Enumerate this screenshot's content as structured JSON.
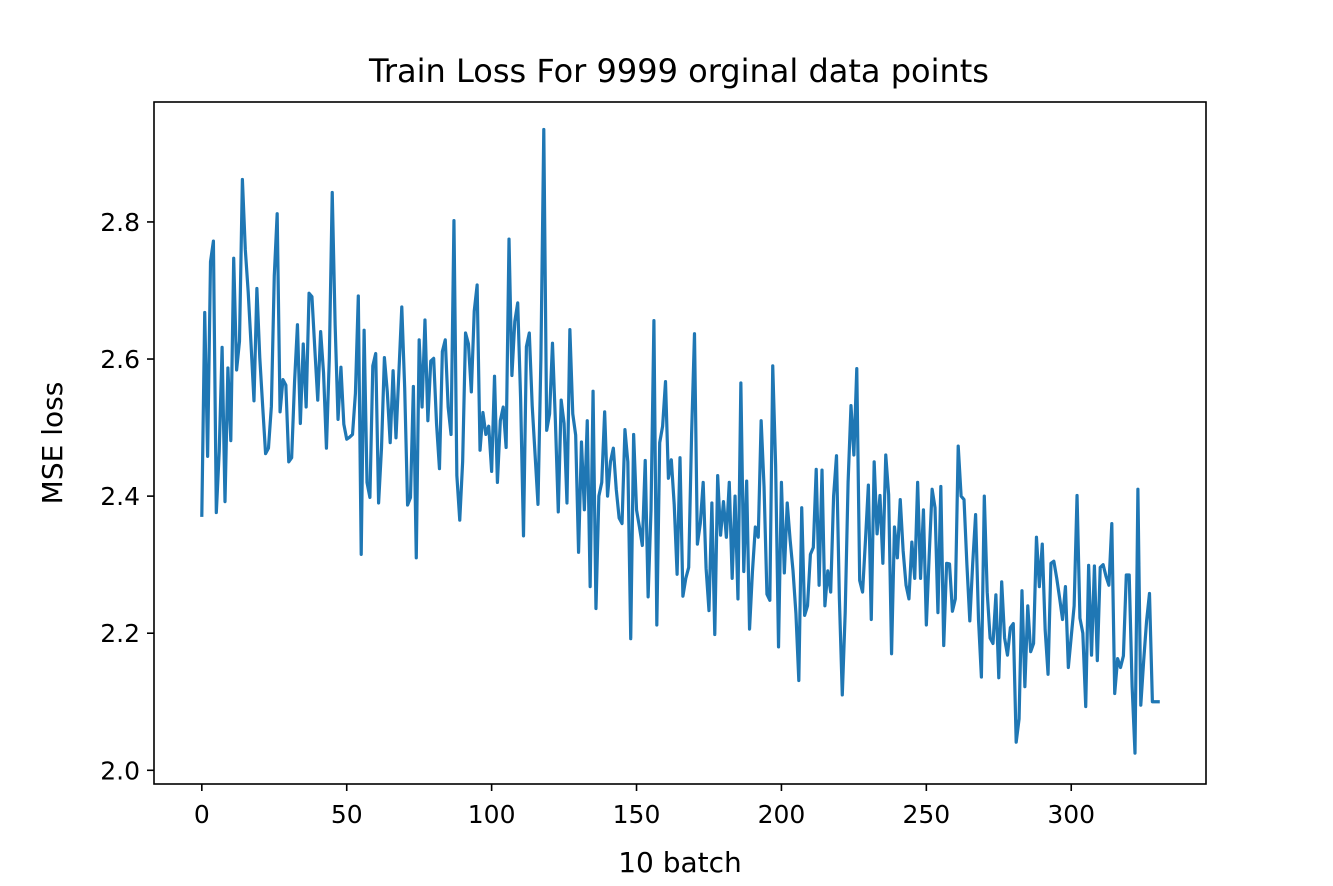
{
  "chart_data": {
    "type": "line",
    "title": "Train Loss For 9999 orginal data points",
    "xlabel": "10 batch",
    "ylabel": "MSE loss",
    "xlim": [
      -16.5,
      346.5
    ],
    "ylim": [
      1.98,
      2.975
    ],
    "xticks": [
      0,
      50,
      100,
      150,
      200,
      250,
      300
    ],
    "xtick_labels": [
      "0",
      "50",
      "100",
      "150",
      "200",
      "250",
      "300"
    ],
    "yticks": [
      2.0,
      2.2,
      2.4,
      2.6,
      2.8
    ],
    "ytick_labels": [
      "2.0",
      "2.2",
      "2.4",
      "2.6",
      "2.8"
    ],
    "grid": false,
    "series_color": "#1f77b4",
    "series": [
      {
        "values": [
          2.372,
          2.668,
          2.458,
          2.742,
          2.772,
          2.376,
          2.465,
          2.617,
          2.392,
          2.587,
          2.481,
          2.747,
          2.584,
          2.626,
          2.862,
          2.76,
          2.698,
          2.62,
          2.539,
          2.703,
          2.602,
          2.531,
          2.462,
          2.47,
          2.531,
          2.721,
          2.812,
          2.523,
          2.57,
          2.562,
          2.45,
          2.456,
          2.567,
          2.65,
          2.506,
          2.622,
          2.53,
          2.696,
          2.691,
          2.614,
          2.54,
          2.64,
          2.58,
          2.47,
          2.602,
          2.843,
          2.65,
          2.512,
          2.588,
          2.505,
          2.483,
          2.486,
          2.49,
          2.55,
          2.692,
          2.315,
          2.642,
          2.42,
          2.398,
          2.59,
          2.608,
          2.39,
          2.47,
          2.602,
          2.552,
          2.478,
          2.583,
          2.485,
          2.58,
          2.676,
          2.558,
          2.387,
          2.398,
          2.56,
          2.31,
          2.628,
          2.53,
          2.657,
          2.51,
          2.597,
          2.601,
          2.505,
          2.44,
          2.611,
          2.628,
          2.53,
          2.49,
          2.802,
          2.43,
          2.365,
          2.45,
          2.638,
          2.622,
          2.552,
          2.67,
          2.708,
          2.467,
          2.522,
          2.49,
          2.502,
          2.436,
          2.575,
          2.42,
          2.51,
          2.53,
          2.471,
          2.775,
          2.576,
          2.655,
          2.682,
          2.542,
          2.342,
          2.618,
          2.638,
          2.532,
          2.46,
          2.388,
          2.6,
          2.935,
          2.496,
          2.52,
          2.623,
          2.51,
          2.377,
          2.54,
          2.506,
          2.39,
          2.643,
          2.52,
          2.489,
          2.318,
          2.479,
          2.38,
          2.51,
          2.268,
          2.553,
          2.236,
          2.4,
          2.42,
          2.523,
          2.4,
          2.45,
          2.47,
          2.41,
          2.368,
          2.36,
          2.497,
          2.45,
          2.192,
          2.49,
          2.38,
          2.355,
          2.328,
          2.452,
          2.253,
          2.38,
          2.656,
          2.212,
          2.478,
          2.502,
          2.567,
          2.426,
          2.453,
          2.388,
          2.286,
          2.456,
          2.254,
          2.28,
          2.296,
          2.49,
          2.637,
          2.33,
          2.36,
          2.42,
          2.295,
          2.233,
          2.39,
          2.198,
          2.43,
          2.343,
          2.392,
          2.34,
          2.42,
          2.28,
          2.4,
          2.25,
          2.565,
          2.29,
          2.422,
          2.206,
          2.29,
          2.355,
          2.34,
          2.51,
          2.414,
          2.257,
          2.248,
          2.59,
          2.444,
          2.18,
          2.42,
          2.288,
          2.39,
          2.336,
          2.291,
          2.229,
          2.131,
          2.383,
          2.226,
          2.24,
          2.315,
          2.325,
          2.439,
          2.27,
          2.438,
          2.24,
          2.291,
          2.26,
          2.4,
          2.459,
          2.25,
          2.11,
          2.23,
          2.42,
          2.532,
          2.46,
          2.586,
          2.277,
          2.26,
          2.336,
          2.416,
          2.22,
          2.45,
          2.345,
          2.401,
          2.302,
          2.46,
          2.402,
          2.17,
          2.355,
          2.31,
          2.395,
          2.32,
          2.27,
          2.25,
          2.333,
          2.28,
          2.42,
          2.28,
          2.38,
          2.212,
          2.315,
          2.41,
          2.383,
          2.23,
          2.414,
          2.182,
          2.302,
          2.301,
          2.232,
          2.25,
          2.473,
          2.4,
          2.395,
          2.3,
          2.218,
          2.302,
          2.373,
          2.22,
          2.136,
          2.4,
          2.26,
          2.193,
          2.185,
          2.256,
          2.135,
          2.275,
          2.193,
          2.168,
          2.208,
          2.214,
          2.041,
          2.075,
          2.262,
          2.122,
          2.24,
          2.173,
          2.185,
          2.34,
          2.268,
          2.33,
          2.205,
          2.14,
          2.302,
          2.305,
          2.28,
          2.251,
          2.22,
          2.268,
          2.15,
          2.195,
          2.24,
          2.401,
          2.222,
          2.2,
          2.093,
          2.299,
          2.168,
          2.298,
          2.16,
          2.296,
          2.3,
          2.283,
          2.27,
          2.36,
          2.112,
          2.163,
          2.15,
          2.167,
          2.285,
          2.285,
          2.123,
          2.025,
          2.41,
          2.095,
          2.16,
          2.218,
          2.258,
          2.1,
          2.1,
          2.1
        ]
      }
    ]
  }
}
